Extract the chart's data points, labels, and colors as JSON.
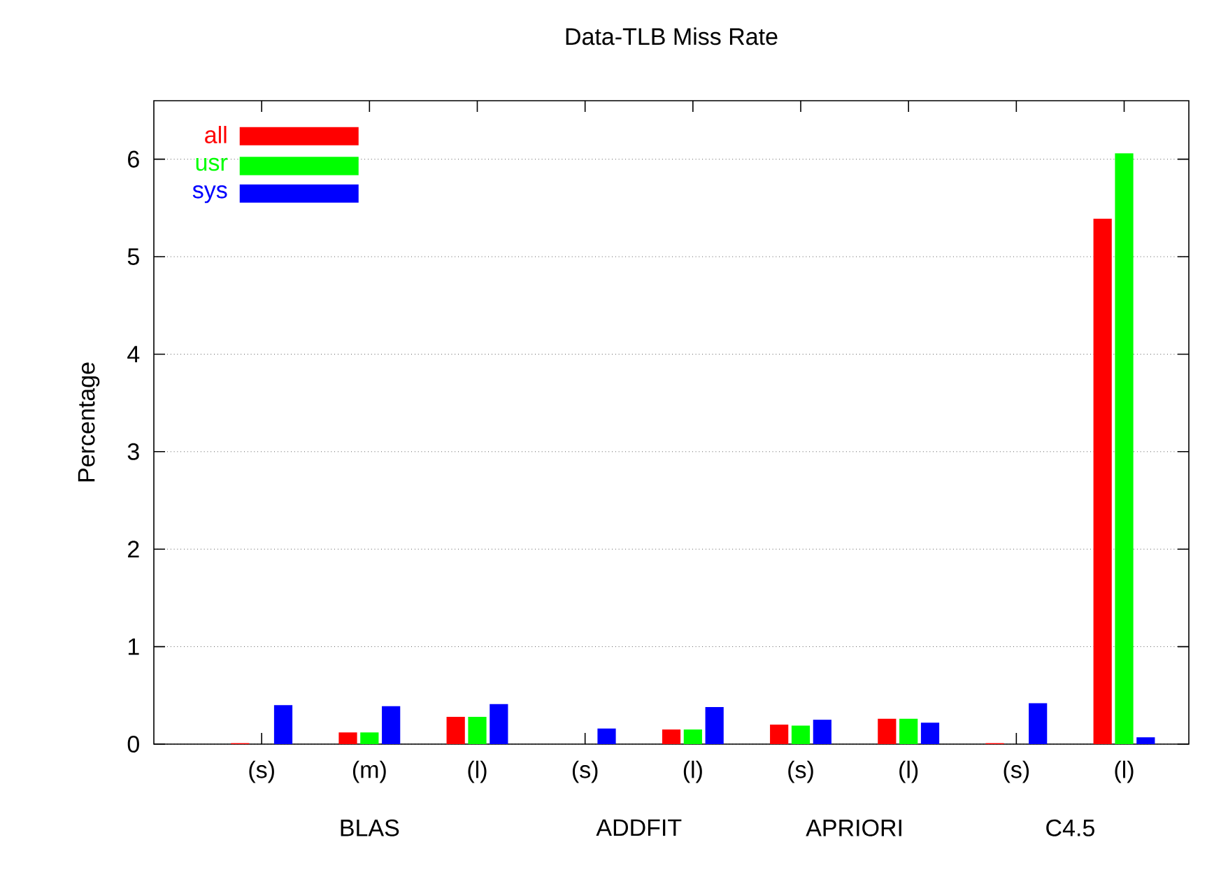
{
  "chart_data": {
    "type": "bar",
    "title": "Data-TLB Miss Rate",
    "ylabel": "Percentage",
    "categories": [
      "(s)",
      "(m)",
      "(l)",
      "(s)",
      "(l)",
      "(s)",
      "(l)",
      "(s)",
      "(l)"
    ],
    "annotations": [
      "BLAS",
      "ADDFIT",
      "APRIORI",
      "C4.5"
    ],
    "series": [
      {
        "name": "all",
        "color": "#ff0000",
        "values": [
          0.01,
          0.12,
          0.28,
          0,
          0.15,
          0.2,
          0.26,
          0.01,
          5.39
        ]
      },
      {
        "name": "usr",
        "color": "#00ff00",
        "values": [
          0,
          0.12,
          0.28,
          0,
          0.15,
          0.19,
          0.26,
          0,
          6.06
        ]
      },
      {
        "name": "sys",
        "color": "#0000ff",
        "values": [
          0.4,
          0.39,
          0.41,
          0.16,
          0.38,
          0.25,
          0.22,
          0.42,
          0.07
        ]
      }
    ],
    "ylim": [
      0,
      6.6
    ],
    "yticks": [
      0,
      1,
      2,
      3,
      4,
      5,
      6
    ],
    "grid": "y",
    "legend": "top left"
  }
}
